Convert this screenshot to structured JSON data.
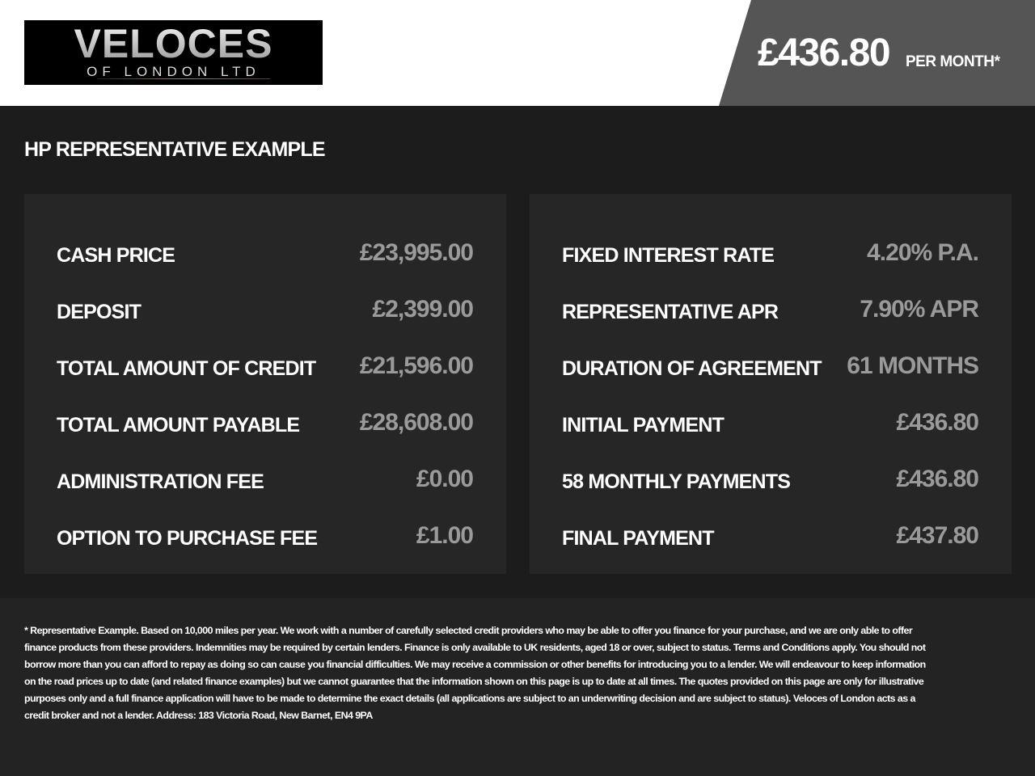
{
  "logo": {
    "title": "VELOCES",
    "subtitle": "OF LONDON LTD"
  },
  "header": {
    "price": "£436.80",
    "per_month": "PER MONTH*"
  },
  "section_title": "HP REPRESENTATIVE EXAMPLE",
  "left_card": [
    {
      "label": "CASH PRICE",
      "value": "£23,995.00"
    },
    {
      "label": "DEPOSIT",
      "value": "£2,399.00"
    },
    {
      "label": "TOTAL AMOUNT OF CREDIT",
      "value": "£21,596.00"
    },
    {
      "label": "TOTAL AMOUNT PAYABLE",
      "value": "£28,608.00"
    },
    {
      "label": "ADMINISTRATION FEE",
      "value": "£0.00"
    },
    {
      "label": "OPTION TO PURCHASE FEE",
      "value": "£1.00"
    }
  ],
  "right_card": [
    {
      "label": "FIXED INTEREST RATE",
      "value": "4.20% P.A."
    },
    {
      "label": "REPRESENTATIVE APR",
      "value": "7.90% APR"
    },
    {
      "label": "DURATION OF AGREEMENT",
      "value": "61 MONTHS"
    },
    {
      "label": "INITIAL PAYMENT",
      "value": "£436.80"
    },
    {
      "label": "58 MONTHLY PAYMENTS",
      "value": "£436.80"
    },
    {
      "label": "FINAL PAYMENT",
      "value": "£437.80"
    }
  ],
  "disclaimer": "* Representative Example. Based on 10,000 miles per year. We work with a number of carefully selected credit providers who may be able to offer you finance for your purchase, and we are only able to offer finance products from these providers. Indemnities may be required by certain lenders. Finance is only available to UK residents, aged 18 or over, subject to status. Terms and Conditions apply. You should not borrow more than you can afford to repay as doing so can cause you financial difficulties. We may receive a commission or other benefits for introducing you to a lender. We will endeavour to keep information on the road prices up to date (and related finance examples) but we cannot guarantee that the information shown on this page is up to date at all times. The quotes provided on this page are only for illustrative purposes only and a full finance application will have to be made to determine the exact details (all applications are subject to an underwriting decision and are subject to status). Veloces of London acts as a credit broker and not a lender. Address: 183 Victoria Road, New Barnet, EN4 9PA"
}
